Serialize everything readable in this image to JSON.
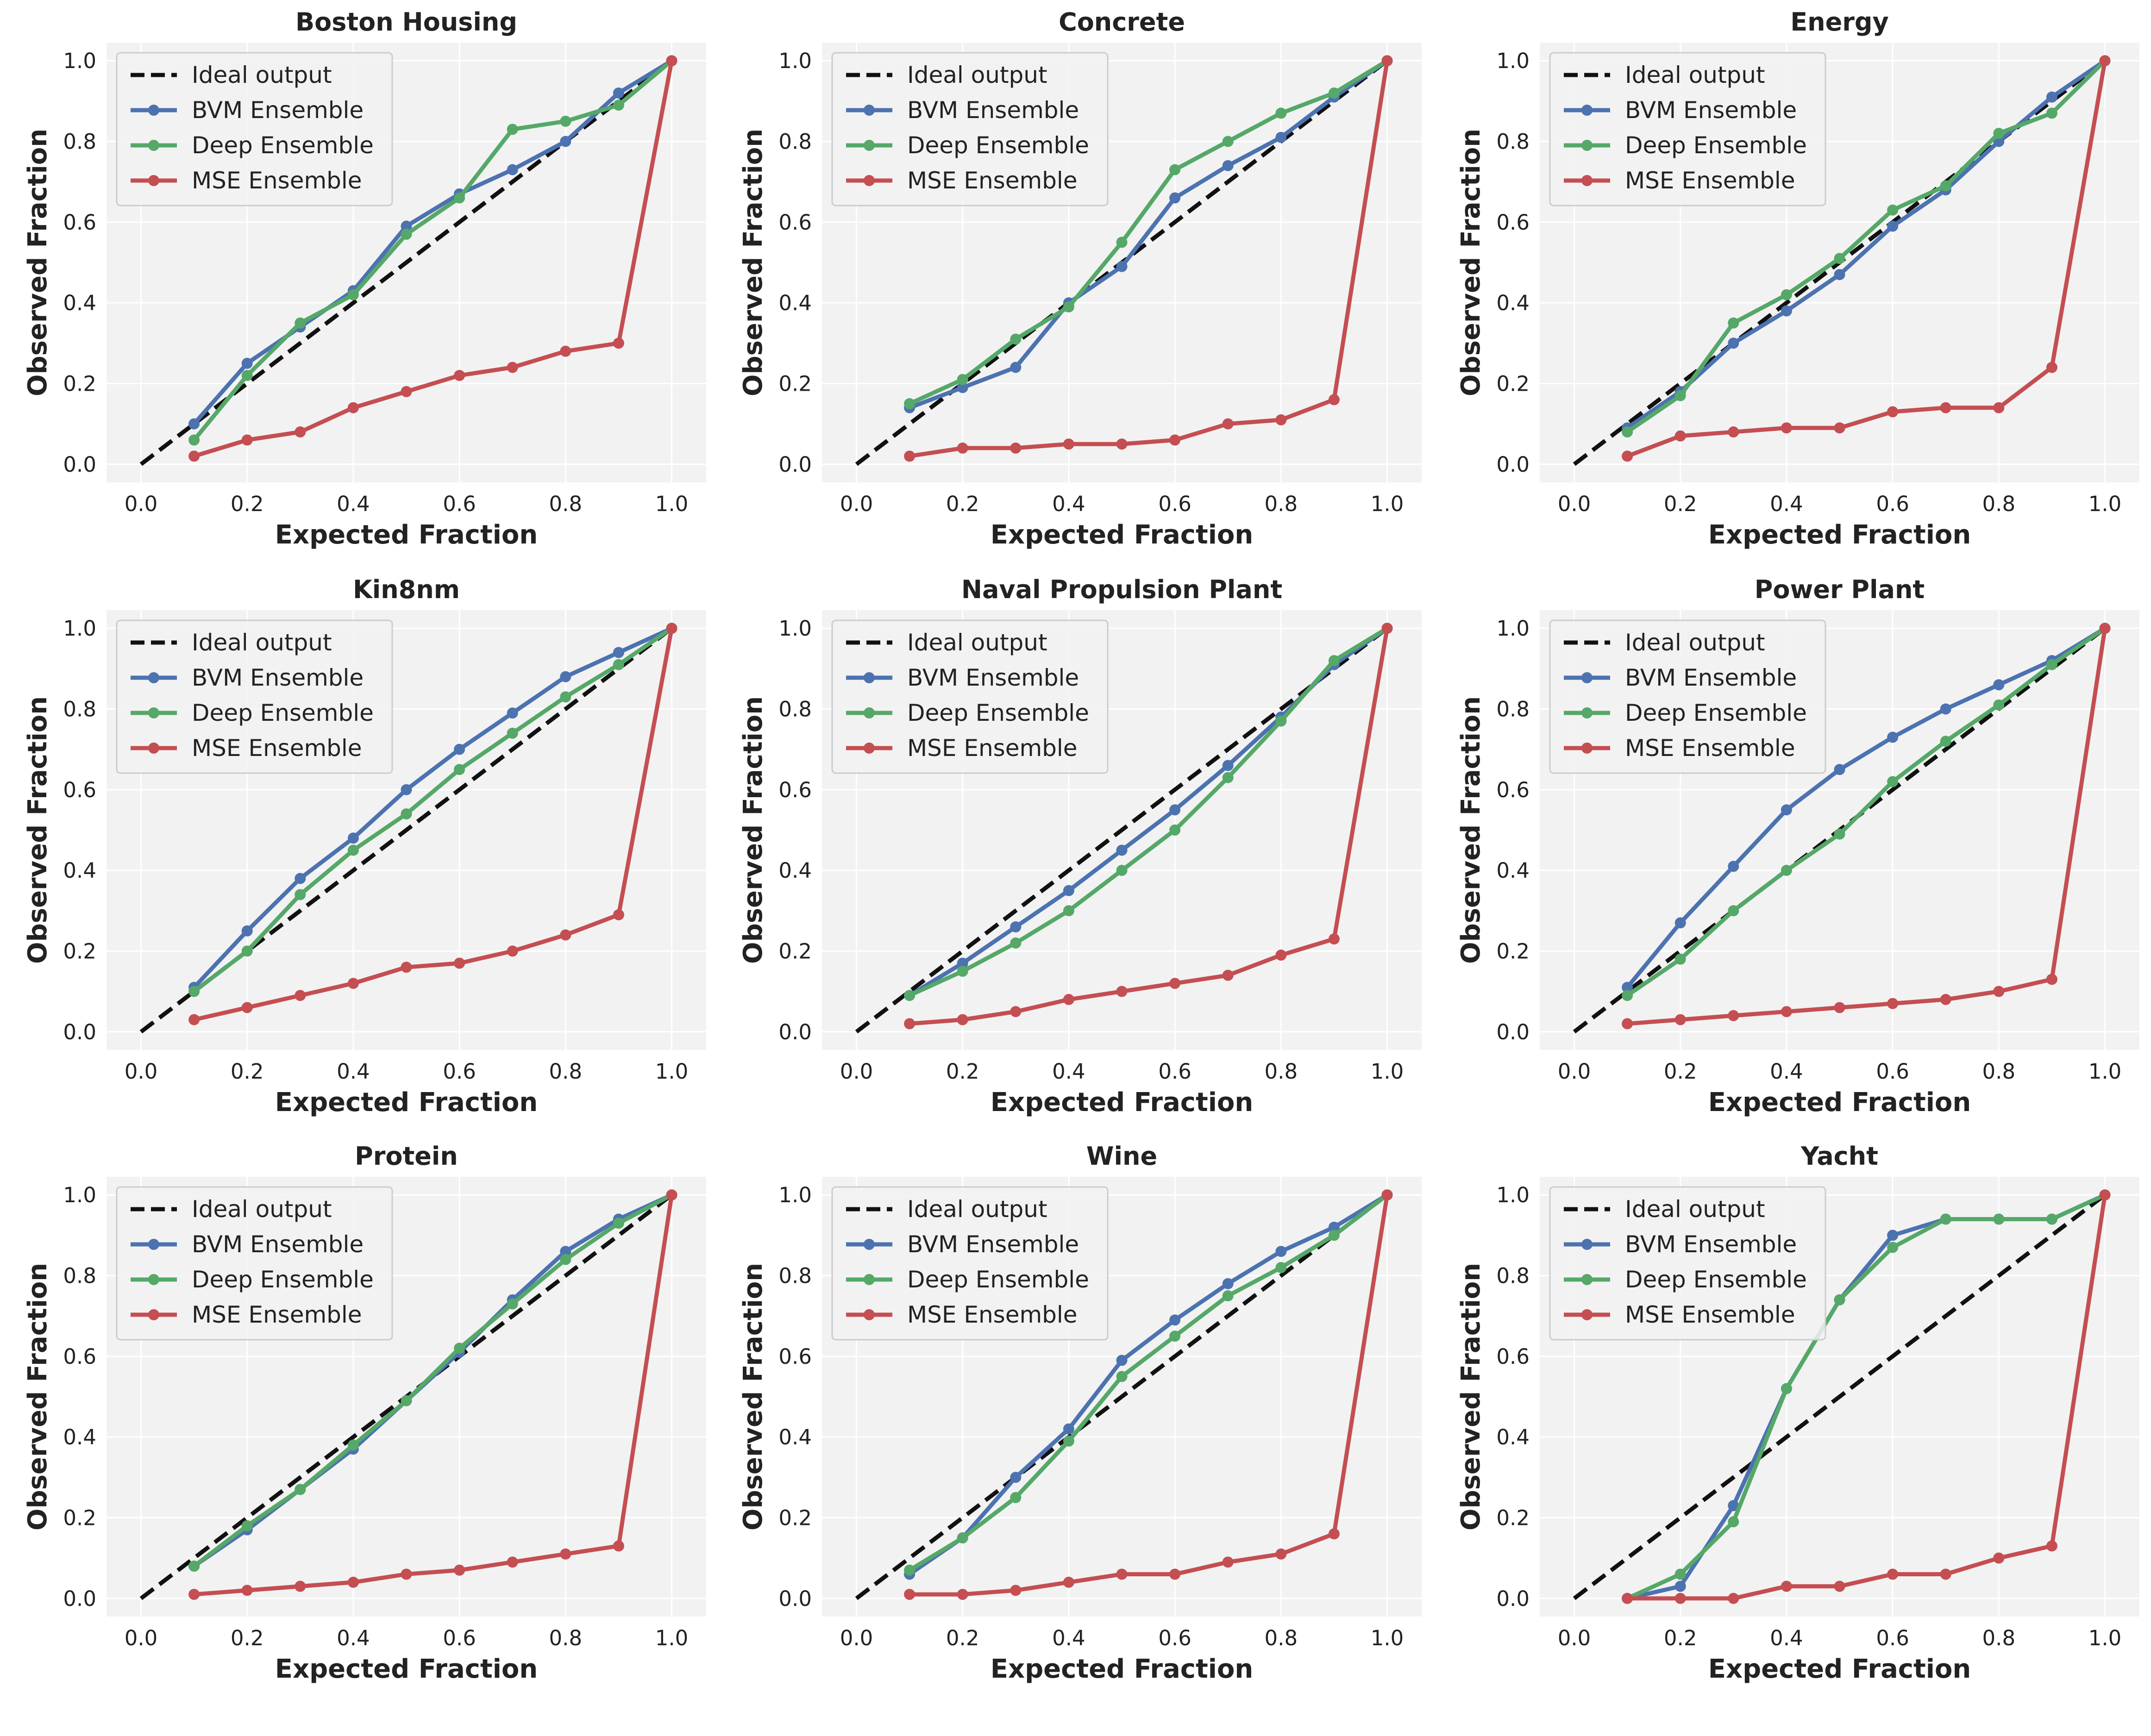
{
  "colors": {
    "ideal": "#111111",
    "bvm": "#4c72b0",
    "deep": "#55a868",
    "mse": "#c44e52",
    "panel_bg": "#f2f2f2",
    "grid": "#ffffff"
  },
  "x_ticks": [
    "0.0",
    "0.2",
    "0.4",
    "0.6",
    "0.8",
    "1.0"
  ],
  "y_ticks": [
    "0.0",
    "0.2",
    "0.4",
    "0.6",
    "0.8",
    "1.0"
  ],
  "chart_data": [
    {
      "type": "line",
      "title": "Boston Housing",
      "xlabel": "Expected Fraction",
      "ylabel": "Observed Fraction",
      "xlim": [
        0,
        1
      ],
      "ylim": [
        0,
        1
      ],
      "legend": "top-left",
      "grid": true,
      "series": [
        {
          "name": "Ideal output",
          "x": [
            0,
            1
          ],
          "values": [
            0,
            1
          ]
        },
        {
          "name": "BVM Ensemble",
          "x": [
            0.1,
            0.2,
            0.3,
            0.4,
            0.5,
            0.6,
            0.7,
            0.8,
            0.9,
            1.0
          ],
          "values": [
            0.1,
            0.25,
            0.34,
            0.43,
            0.59,
            0.67,
            0.73,
            0.8,
            0.92,
            1.0
          ]
        },
        {
          "name": "Deep Ensemble",
          "x": [
            0.1,
            0.2,
            0.3,
            0.4,
            0.5,
            0.6,
            0.7,
            0.8,
            0.9,
            1.0
          ],
          "values": [
            0.06,
            0.22,
            0.35,
            0.42,
            0.57,
            0.66,
            0.83,
            0.85,
            0.89,
            1.0
          ]
        },
        {
          "name": "MSE Ensemble",
          "x": [
            0.1,
            0.2,
            0.3,
            0.4,
            0.5,
            0.6,
            0.7,
            0.8,
            0.9,
            1.0
          ],
          "values": [
            0.02,
            0.06,
            0.08,
            0.14,
            0.18,
            0.22,
            0.24,
            0.28,
            0.3,
            1.0
          ]
        }
      ]
    },
    {
      "type": "line",
      "title": "Concrete",
      "xlabel": "Expected Fraction",
      "ylabel": "Observed Fraction",
      "xlim": [
        0,
        1
      ],
      "ylim": [
        0,
        1
      ],
      "legend": "top-left",
      "grid": true,
      "series": [
        {
          "name": "Ideal output",
          "x": [
            0,
            1
          ],
          "values": [
            0,
            1
          ]
        },
        {
          "name": "BVM Ensemble",
          "x": [
            0.1,
            0.2,
            0.3,
            0.4,
            0.5,
            0.6,
            0.7,
            0.8,
            0.9,
            1.0
          ],
          "values": [
            0.14,
            0.19,
            0.24,
            0.4,
            0.49,
            0.66,
            0.74,
            0.81,
            0.91,
            1.0
          ]
        },
        {
          "name": "Deep Ensemble",
          "x": [
            0.1,
            0.2,
            0.3,
            0.4,
            0.5,
            0.6,
            0.7,
            0.8,
            0.9,
            1.0
          ],
          "values": [
            0.15,
            0.21,
            0.31,
            0.39,
            0.55,
            0.73,
            0.8,
            0.87,
            0.92,
            1.0
          ]
        },
        {
          "name": "MSE Ensemble",
          "x": [
            0.1,
            0.2,
            0.3,
            0.4,
            0.5,
            0.6,
            0.7,
            0.8,
            0.9,
            1.0
          ],
          "values": [
            0.02,
            0.04,
            0.04,
            0.05,
            0.05,
            0.06,
            0.1,
            0.11,
            0.16,
            1.0
          ]
        }
      ]
    },
    {
      "type": "line",
      "title": "Energy",
      "xlabel": "Expected Fraction",
      "ylabel": "Observed Fraction",
      "xlim": [
        0,
        1
      ],
      "ylim": [
        0,
        1
      ],
      "legend": "top-left",
      "grid": true,
      "series": [
        {
          "name": "Ideal output",
          "x": [
            0,
            1
          ],
          "values": [
            0,
            1
          ]
        },
        {
          "name": "BVM Ensemble",
          "x": [
            0.1,
            0.2,
            0.3,
            0.4,
            0.5,
            0.6,
            0.7,
            0.8,
            0.9,
            1.0
          ],
          "values": [
            0.09,
            0.18,
            0.3,
            0.38,
            0.47,
            0.59,
            0.68,
            0.8,
            0.91,
            1.0
          ]
        },
        {
          "name": "Deep Ensemble",
          "x": [
            0.1,
            0.2,
            0.3,
            0.4,
            0.5,
            0.6,
            0.7,
            0.8,
            0.9,
            1.0
          ],
          "values": [
            0.08,
            0.17,
            0.35,
            0.42,
            0.51,
            0.63,
            0.69,
            0.82,
            0.87,
            1.0
          ]
        },
        {
          "name": "MSE Ensemble",
          "x": [
            0.1,
            0.2,
            0.3,
            0.4,
            0.5,
            0.6,
            0.7,
            0.8,
            0.9,
            1.0
          ],
          "values": [
            0.02,
            0.07,
            0.08,
            0.09,
            0.09,
            0.13,
            0.14,
            0.14,
            0.24,
            1.0
          ]
        }
      ]
    },
    {
      "type": "line",
      "title": "Kin8nm",
      "xlabel": "Expected Fraction",
      "ylabel": "Observed Fraction",
      "xlim": [
        0,
        1
      ],
      "ylim": [
        0,
        1
      ],
      "legend": "top-left",
      "grid": true,
      "series": [
        {
          "name": "Ideal output",
          "x": [
            0,
            1
          ],
          "values": [
            0,
            1
          ]
        },
        {
          "name": "BVM Ensemble",
          "x": [
            0.1,
            0.2,
            0.3,
            0.4,
            0.5,
            0.6,
            0.7,
            0.8,
            0.9,
            1.0
          ],
          "values": [
            0.11,
            0.25,
            0.38,
            0.48,
            0.6,
            0.7,
            0.79,
            0.88,
            0.94,
            1.0
          ]
        },
        {
          "name": "Deep Ensemble",
          "x": [
            0.1,
            0.2,
            0.3,
            0.4,
            0.5,
            0.6,
            0.7,
            0.8,
            0.9,
            1.0
          ],
          "values": [
            0.1,
            0.2,
            0.34,
            0.45,
            0.54,
            0.65,
            0.74,
            0.83,
            0.91,
            1.0
          ]
        },
        {
          "name": "MSE Ensemble",
          "x": [
            0.1,
            0.2,
            0.3,
            0.4,
            0.5,
            0.6,
            0.7,
            0.8,
            0.9,
            1.0
          ],
          "values": [
            0.03,
            0.06,
            0.09,
            0.12,
            0.16,
            0.17,
            0.2,
            0.24,
            0.29,
            1.0
          ]
        }
      ]
    },
    {
      "type": "line",
      "title": "Naval Propulsion Plant",
      "xlabel": "Expected Fraction",
      "ylabel": "Observed Fraction",
      "xlim": [
        0,
        1
      ],
      "ylim": [
        0,
        1
      ],
      "legend": "top-left",
      "grid": true,
      "series": [
        {
          "name": "Ideal output",
          "x": [
            0,
            1
          ],
          "values": [
            0,
            1
          ]
        },
        {
          "name": "BVM Ensemble",
          "x": [
            0.1,
            0.2,
            0.3,
            0.4,
            0.5,
            0.6,
            0.7,
            0.8,
            0.9,
            1.0
          ],
          "values": [
            0.09,
            0.17,
            0.26,
            0.35,
            0.45,
            0.55,
            0.66,
            0.78,
            0.91,
            1.0
          ]
        },
        {
          "name": "Deep Ensemble",
          "x": [
            0.1,
            0.2,
            0.3,
            0.4,
            0.5,
            0.6,
            0.7,
            0.8,
            0.9,
            1.0
          ],
          "values": [
            0.09,
            0.15,
            0.22,
            0.3,
            0.4,
            0.5,
            0.63,
            0.77,
            0.92,
            1.0
          ]
        },
        {
          "name": "MSE Ensemble",
          "x": [
            0.1,
            0.2,
            0.3,
            0.4,
            0.5,
            0.6,
            0.7,
            0.8,
            0.9,
            1.0
          ],
          "values": [
            0.02,
            0.03,
            0.05,
            0.08,
            0.1,
            0.12,
            0.14,
            0.19,
            0.23,
            1.0
          ]
        }
      ]
    },
    {
      "type": "line",
      "title": "Power Plant",
      "xlabel": "Expected Fraction",
      "ylabel": "Observed Fraction",
      "xlim": [
        0,
        1
      ],
      "ylim": [
        0,
        1
      ],
      "legend": "top-left",
      "grid": true,
      "series": [
        {
          "name": "Ideal output",
          "x": [
            0,
            1
          ],
          "values": [
            0,
            1
          ]
        },
        {
          "name": "BVM Ensemble",
          "x": [
            0.1,
            0.2,
            0.3,
            0.4,
            0.5,
            0.6,
            0.7,
            0.8,
            0.9,
            1.0
          ],
          "values": [
            0.11,
            0.27,
            0.41,
            0.55,
            0.65,
            0.73,
            0.8,
            0.86,
            0.92,
            1.0
          ]
        },
        {
          "name": "Deep Ensemble",
          "x": [
            0.1,
            0.2,
            0.3,
            0.4,
            0.5,
            0.6,
            0.7,
            0.8,
            0.9,
            1.0
          ],
          "values": [
            0.09,
            0.18,
            0.3,
            0.4,
            0.49,
            0.62,
            0.72,
            0.81,
            0.91,
            1.0
          ]
        },
        {
          "name": "MSE Ensemble",
          "x": [
            0.1,
            0.2,
            0.3,
            0.4,
            0.5,
            0.6,
            0.7,
            0.8,
            0.9,
            1.0
          ],
          "values": [
            0.02,
            0.03,
            0.04,
            0.05,
            0.06,
            0.07,
            0.08,
            0.1,
            0.13,
            1.0
          ]
        }
      ]
    },
    {
      "type": "line",
      "title": "Protein",
      "xlabel": "Expected Fraction",
      "ylabel": "Observed Fraction",
      "xlim": [
        0,
        1
      ],
      "ylim": [
        0,
        1
      ],
      "legend": "top-left",
      "grid": true,
      "series": [
        {
          "name": "Ideal output",
          "x": [
            0,
            1
          ],
          "values": [
            0,
            1
          ]
        },
        {
          "name": "BVM Ensemble",
          "x": [
            0.1,
            0.2,
            0.3,
            0.4,
            0.5,
            0.6,
            0.7,
            0.8,
            0.9,
            1.0
          ],
          "values": [
            0.08,
            0.17,
            0.27,
            0.37,
            0.49,
            0.61,
            0.74,
            0.86,
            0.94,
            1.0
          ]
        },
        {
          "name": "Deep Ensemble",
          "x": [
            0.1,
            0.2,
            0.3,
            0.4,
            0.5,
            0.6,
            0.7,
            0.8,
            0.9,
            1.0
          ],
          "values": [
            0.08,
            0.18,
            0.27,
            0.38,
            0.49,
            0.62,
            0.73,
            0.84,
            0.93,
            1.0
          ]
        },
        {
          "name": "MSE Ensemble",
          "x": [
            0.1,
            0.2,
            0.3,
            0.4,
            0.5,
            0.6,
            0.7,
            0.8,
            0.9,
            1.0
          ],
          "values": [
            0.01,
            0.02,
            0.03,
            0.04,
            0.06,
            0.07,
            0.09,
            0.11,
            0.13,
            1.0
          ]
        }
      ]
    },
    {
      "type": "line",
      "title": "Wine",
      "xlabel": "Expected Fraction",
      "ylabel": "Observed Fraction",
      "xlim": [
        0,
        1
      ],
      "ylim": [
        0,
        1
      ],
      "legend": "top-left",
      "grid": true,
      "series": [
        {
          "name": "Ideal output",
          "x": [
            0,
            1
          ],
          "values": [
            0,
            1
          ]
        },
        {
          "name": "BVM Ensemble",
          "x": [
            0.1,
            0.2,
            0.3,
            0.4,
            0.5,
            0.6,
            0.7,
            0.8,
            0.9,
            1.0
          ],
          "values": [
            0.06,
            0.15,
            0.3,
            0.42,
            0.59,
            0.69,
            0.78,
            0.86,
            0.92,
            1.0
          ]
        },
        {
          "name": "Deep Ensemble",
          "x": [
            0.1,
            0.2,
            0.3,
            0.4,
            0.5,
            0.6,
            0.7,
            0.8,
            0.9,
            1.0
          ],
          "values": [
            0.07,
            0.15,
            0.25,
            0.39,
            0.55,
            0.65,
            0.75,
            0.82,
            0.9,
            1.0
          ]
        },
        {
          "name": "MSE Ensemble",
          "x": [
            0.1,
            0.2,
            0.3,
            0.4,
            0.5,
            0.6,
            0.7,
            0.8,
            0.9,
            1.0
          ],
          "values": [
            0.01,
            0.01,
            0.02,
            0.04,
            0.06,
            0.06,
            0.09,
            0.11,
            0.16,
            1.0
          ]
        }
      ]
    },
    {
      "type": "line",
      "title": "Yacht",
      "xlabel": "Expected Fraction",
      "ylabel": "Observed Fraction",
      "xlim": [
        0,
        1
      ],
      "ylim": [
        0,
        1
      ],
      "legend": "top-left",
      "grid": true,
      "series": [
        {
          "name": "Ideal output",
          "x": [
            0,
            1
          ],
          "values": [
            0,
            1
          ]
        },
        {
          "name": "BVM Ensemble",
          "x": [
            0.1,
            0.2,
            0.3,
            0.4,
            0.5,
            0.6,
            0.7,
            0.8,
            0.9,
            1.0
          ],
          "values": [
            0.0,
            0.03,
            0.23,
            0.52,
            0.74,
            0.9,
            0.94,
            0.94,
            0.94,
            1.0
          ]
        },
        {
          "name": "Deep Ensemble",
          "x": [
            0.1,
            0.2,
            0.3,
            0.4,
            0.5,
            0.6,
            0.7,
            0.8,
            0.9,
            1.0
          ],
          "values": [
            0.0,
            0.06,
            0.19,
            0.52,
            0.74,
            0.87,
            0.94,
            0.94,
            0.94,
            1.0
          ]
        },
        {
          "name": "MSE Ensemble",
          "x": [
            0.1,
            0.2,
            0.3,
            0.4,
            0.5,
            0.6,
            0.7,
            0.8,
            0.9,
            1.0
          ],
          "values": [
            0.0,
            0.0,
            0.0,
            0.03,
            0.03,
            0.06,
            0.06,
            0.1,
            0.13,
            1.0
          ]
        }
      ]
    }
  ]
}
